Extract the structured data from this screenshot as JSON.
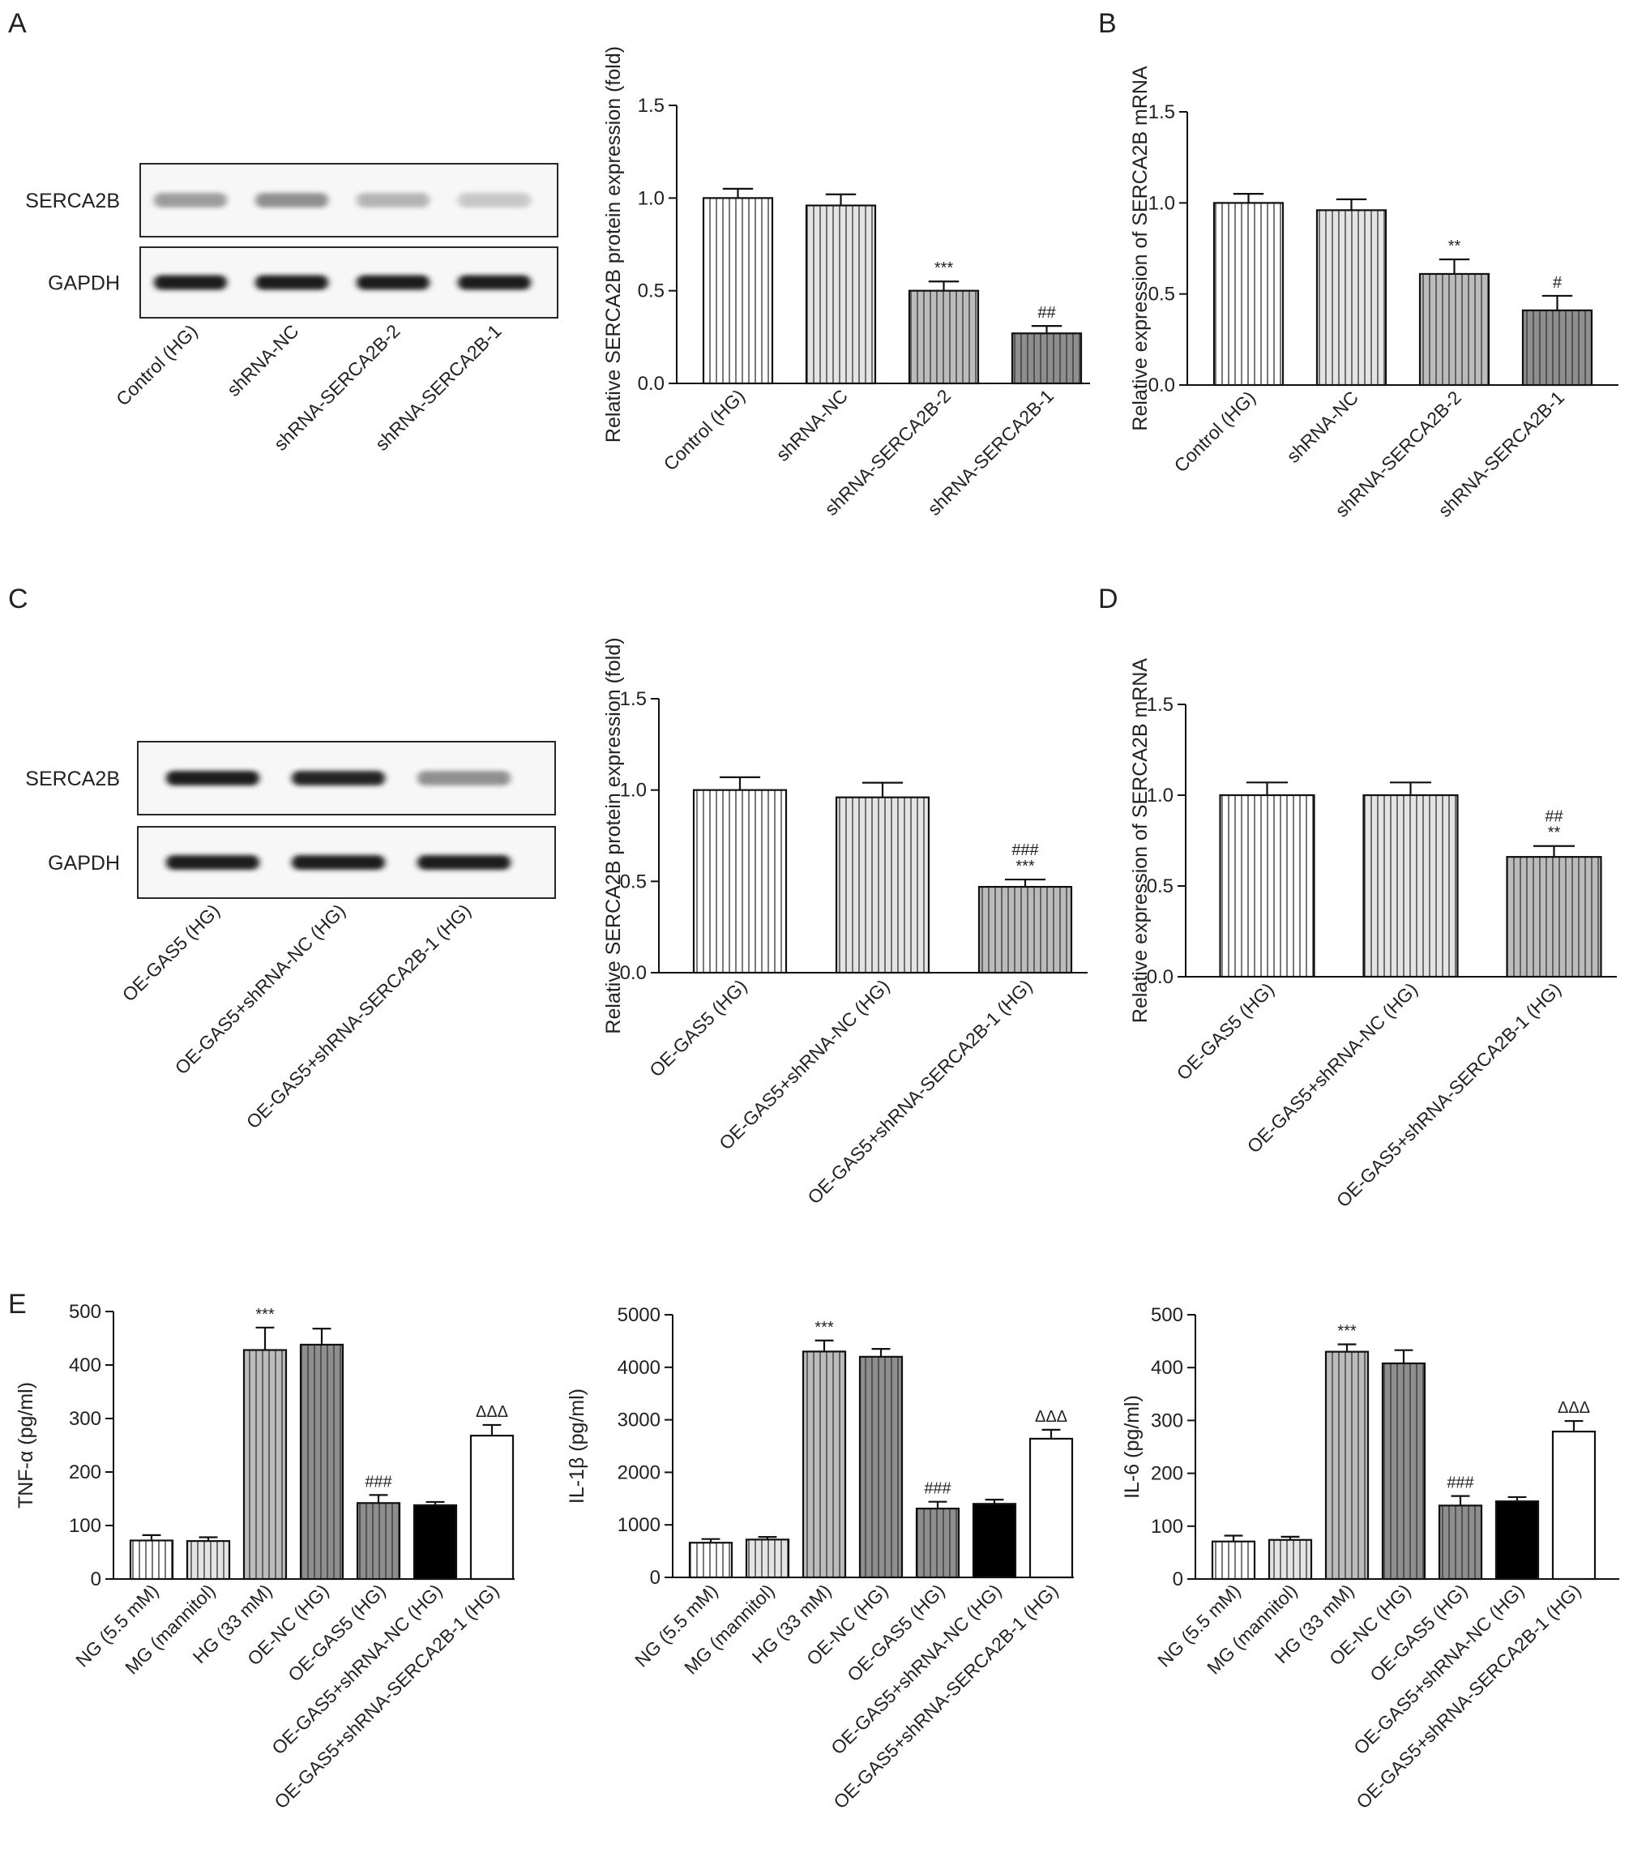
{
  "colors": {
    "axis": "#111111",
    "bar_edge": "#111111",
    "blot_band": "#1a1a1a",
    "blot_bg": "#f7f7f7",
    "fill_white": "#ffffff",
    "fill_light": "#e4e4e4",
    "fill_mid": "#bcbcbc",
    "fill_dark": "#8e8e8e",
    "fill_black": "#000000"
  },
  "blots": [
    {
      "panel": "A",
      "rows": [
        {
          "label": "SERCA2B",
          "intensity": [
            0.3,
            0.38,
            0.18,
            0.07
          ]
        },
        {
          "label": "GAPDH",
          "intensity": [
            1.0,
            1.0,
            1.0,
            1.0
          ]
        }
      ],
      "lanes": [
        "Control (HG)",
        "shRNA-NC",
        "shRNA-SERCA2B-2",
        "shRNA-SERCA2B-1"
      ]
    },
    {
      "panel": "C",
      "rows": [
        {
          "label": "SERCA2B",
          "intensity": [
            1.0,
            0.95,
            0.38
          ]
        },
        {
          "label": "GAPDH",
          "intensity": [
            1.0,
            1.0,
            1.0
          ]
        }
      ],
      "lanes": [
        "OE-GAS5 (HG)",
        "OE-GAS5+shRNA-NC (HG)",
        "OE-GAS5+shRNA-SERCA2B-1 (HG)"
      ]
    }
  ],
  "chart_data": [
    {
      "type": "bar",
      "panel": "A",
      "ylabel": "Relative SERCA2B protein expression (fold)",
      "ylim": [
        0,
        1.5
      ],
      "yticks": [
        "0.0",
        "0.5",
        "1.0",
        "1.5"
      ],
      "categories": [
        "Control (HG)",
        "shRNA-NC",
        "shRNA-SERCA2B-2",
        "shRNA-SERCA2B-1"
      ],
      "values": [
        1.0,
        0.96,
        0.5,
        0.27
      ],
      "errors": [
        0.05,
        0.06,
        0.05,
        0.04
      ],
      "annotations": [
        "",
        "",
        "***",
        "##"
      ],
      "patterns": [
        "vlines",
        "vlines",
        "vlines",
        "vlines"
      ],
      "fills": [
        "white",
        "light",
        "mid",
        "dark"
      ]
    },
    {
      "type": "bar",
      "panel": "B",
      "ylabel": "Relative expression of SERCA2B mRNA",
      "ylim": [
        0,
        1.5
      ],
      "yticks": [
        "0.0",
        "0.5",
        "1.0",
        "1.5"
      ],
      "categories": [
        "Control (HG)",
        "shRNA-NC",
        "shRNA-SERCA2B-2",
        "shRNA-SERCA2B-1"
      ],
      "values": [
        1.0,
        0.96,
        0.61,
        0.41
      ],
      "errors": [
        0.05,
        0.06,
        0.08,
        0.08
      ],
      "annotations": [
        "",
        "",
        "**",
        "#"
      ],
      "patterns": [
        "vlines",
        "vlines",
        "vlines",
        "vlines"
      ],
      "fills": [
        "white",
        "light",
        "mid",
        "dark"
      ]
    },
    {
      "type": "bar",
      "panel": "C",
      "ylabel": "Relative SERCA2B protein expression (fold)",
      "ylim": [
        0,
        1.5
      ],
      "yticks": [
        "0.0",
        "0.5",
        "1.0",
        "1.5"
      ],
      "categories": [
        "OE-GAS5 (HG)",
        "OE-GAS5+shRNA-NC (HG)",
        "OE-GAS5+shRNA-SERCA2B-1 (HG)"
      ],
      "values": [
        1.0,
        0.96,
        0.47
      ],
      "errors": [
        0.07,
        0.08,
        0.04
      ],
      "annotations": [
        "",
        "",
        "###\n***"
      ],
      "patterns": [
        "vlines",
        "vlines",
        "vlines"
      ],
      "fills": [
        "white",
        "light",
        "mid"
      ]
    },
    {
      "type": "bar",
      "panel": "D",
      "ylabel": "Relative expression of SERCA2B mRNA",
      "ylim": [
        0,
        1.5
      ],
      "yticks": [
        "0.0",
        "0.5",
        "1.0",
        "1.5"
      ],
      "categories": [
        "OE-GAS5 (HG)",
        "OE-GAS5+shRNA-NC (HG)",
        "OE-GAS5+shRNA-SERCA2B-1 (HG)"
      ],
      "values": [
        1.0,
        1.0,
        0.66
      ],
      "errors": [
        0.07,
        0.07,
        0.06
      ],
      "annotations": [
        "",
        "",
        "##\n**"
      ],
      "patterns": [
        "vlines",
        "vlines",
        "vlines"
      ],
      "fills": [
        "white",
        "light",
        "mid"
      ]
    },
    {
      "type": "bar",
      "panel": "E",
      "ylabel": "TNF-α (pg/ml)",
      "ylim": [
        0,
        500
      ],
      "yticks": [
        "0",
        "100",
        "200",
        "300",
        "400",
        "500"
      ],
      "categories": [
        "NG (5.5 mM)",
        "MG (mannitol)",
        "HG (33 mM)",
        "OE-NC (HG)",
        "OE-GAS5 (HG)",
        "OE-GAS5+shRNA-NC (HG)",
        "OE-GAS5+shRNA-SERCA2B-1 (HG)"
      ],
      "values": [
        72,
        71,
        428,
        438,
        142,
        138,
        268
      ],
      "errors": [
        10,
        7,
        42,
        30,
        15,
        6,
        20
      ],
      "annotations": [
        "",
        "",
        "***",
        "",
        "###",
        "",
        "ΔΔΔ"
      ],
      "patterns": [
        "vlines",
        "vlines",
        "vlines",
        "vlines",
        "vlines",
        "none",
        "none"
      ],
      "fills": [
        "white",
        "light",
        "mid",
        "dark",
        "dark",
        "black",
        "white"
      ]
    },
    {
      "type": "bar",
      "panel": "E",
      "ylabel": "IL-1β (pg/ml)",
      "ylim": [
        0,
        5000
      ],
      "yticks": [
        "0",
        "1000",
        "2000",
        "3000",
        "4000",
        "5000"
      ],
      "categories": [
        "NG (5.5 mM)",
        "MG (mannitol)",
        "HG (33 mM)",
        "OE-NC (HG)",
        "OE-GAS5 (HG)",
        "OE-GAS5+shRNA-NC (HG)",
        "OE-GAS5+shRNA-SERCA2B-1 (HG)"
      ],
      "values": [
        660,
        720,
        4300,
        4200,
        1310,
        1400,
        2640
      ],
      "errors": [
        70,
        50,
        210,
        150,
        130,
        80,
        170
      ],
      "annotations": [
        "",
        "",
        "***",
        "",
        "###",
        "",
        "ΔΔΔ"
      ],
      "patterns": [
        "vlines",
        "vlines",
        "vlines",
        "vlines",
        "vlines",
        "none",
        "none"
      ],
      "fills": [
        "white",
        "light",
        "mid",
        "dark",
        "dark",
        "black",
        "white"
      ]
    },
    {
      "type": "bar",
      "panel": "E",
      "ylabel": "IL-6 (pg/ml)",
      "ylim": [
        0,
        500
      ],
      "yticks": [
        "0",
        "100",
        "200",
        "300",
        "400",
        "500"
      ],
      "categories": [
        "NG (5.5 mM)",
        "MG (mannitol)",
        "HG (33 mM)",
        "OE-NC (HG)",
        "OE-GAS5 (HG)",
        "OE-GAS5+shRNA-NC (HG)",
        "OE-GAS5+shRNA-SERCA2B-1 (HG)"
      ],
      "values": [
        71,
        74,
        430,
        408,
        139,
        147,
        279
      ],
      "errors": [
        11,
        6,
        14,
        25,
        18,
        8,
        20
      ],
      "annotations": [
        "",
        "",
        "***",
        "",
        "###",
        "",
        "ΔΔΔ"
      ],
      "patterns": [
        "vlines",
        "vlines",
        "vlines",
        "vlines",
        "vlines",
        "none",
        "none"
      ],
      "fills": [
        "white",
        "light",
        "mid",
        "dark",
        "dark",
        "black",
        "white"
      ]
    }
  ]
}
